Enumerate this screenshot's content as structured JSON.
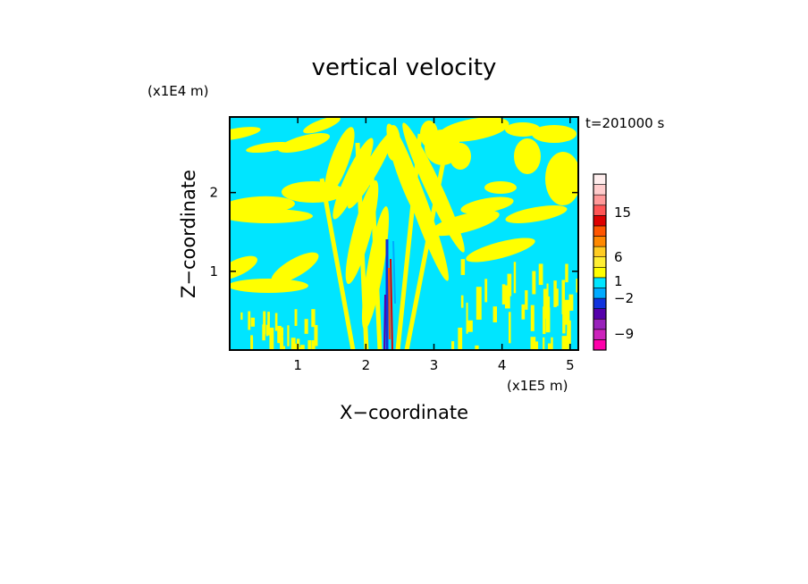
{
  "chart_data": {
    "type": "heatmap",
    "title": "vertical velocity",
    "xlabel": "X−coordinate",
    "ylabel": "Z−coordinate",
    "x_unit": "(x1E5 m)",
    "y_unit": "(x1E4 m)",
    "time_label": "t=201000 s",
    "xlim": [
      0,
      5.12
    ],
    "ylim": [
      0,
      2.96
    ],
    "x_ticks": [
      1,
      2,
      3,
      4,
      5
    ],
    "y_ticks": [
      1,
      2
    ],
    "field_colors": {
      "weak_negative": "#00e5ff",
      "weak_positive": "#ffff00"
    },
    "colorbar": {
      "labels": [
        "15",
        "6",
        "1",
        "−2",
        "−9"
      ],
      "label_levels": [
        15,
        6,
        1,
        -2,
        -9
      ],
      "colors": [
        "#ff00aa",
        "#cc22bb",
        "#9922bb",
        "#5500aa",
        "#1133dd",
        "#00aaff",
        "#00e5ff",
        "#ffff00",
        "#ffee33",
        "#ffcc22",
        "#ff8800",
        "#ff5500",
        "#dd0000",
        "#ff5555",
        "#ff9999",
        "#ffcccc",
        "#ffeeee"
      ]
    }
  }
}
